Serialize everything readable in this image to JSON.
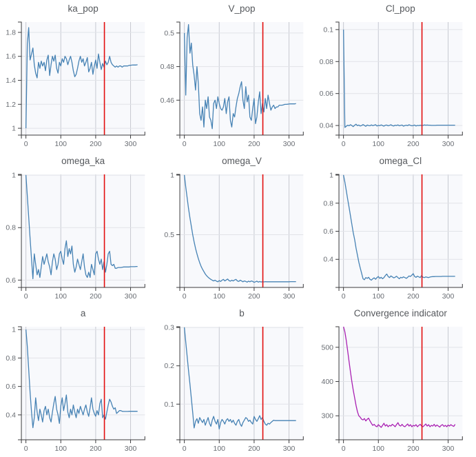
{
  "styles": {
    "page_bg": "#ffffff",
    "plot_bg": "#f8f9fc",
    "grid_vertical": "#c7c9d1",
    "grid_horizontal": "#e1e3e8",
    "axis_color": "#3b3b3d",
    "tick_label_color": "#696d73",
    "title_color": "#55585c",
    "series_blue": "#4682B4",
    "series_magenta": "#A920B2",
    "red_line": "#e30e0e"
  },
  "chart_data": {
    "type": "line",
    "layout": "3x3-grid",
    "xlabel": "",
    "x": [
      0,
      4,
      8,
      12,
      16,
      20,
      24,
      28,
      32,
      36,
      40,
      44,
      48,
      52,
      56,
      60,
      64,
      68,
      72,
      76,
      80,
      84,
      88,
      92,
      96,
      100,
      104,
      108,
      112,
      116,
      120,
      124,
      128,
      132,
      136,
      140,
      144,
      148,
      152,
      156,
      160,
      164,
      168,
      172,
      176,
      180,
      184,
      188,
      192,
      196,
      200,
      204,
      208,
      212,
      216,
      220,
      224,
      228,
      232,
      236,
      240,
      244,
      248,
      252,
      256,
      260,
      264,
      268,
      272,
      276,
      280,
      284,
      288,
      292,
      296,
      300,
      304,
      308,
      312,
      316,
      320
    ],
    "xlim": [
      -13,
      341
    ],
    "xticks": [
      0,
      100,
      200,
      300
    ],
    "xtick_labels": [
      "0",
      "100",
      "200",
      "300"
    ],
    "vline_x": 225,
    "panels": [
      {
        "title": "ka_pop",
        "color_key": "series_blue",
        "ylim": [
          0.943,
          1.886
        ],
        "yticks": [
          1,
          1.2,
          1.4,
          1.6,
          1.8
        ],
        "ytick_labels": [
          "1",
          "1.2",
          "1.4",
          "1.6",
          "1.8"
        ],
        "y": [
          1.0,
          1.7,
          1.84,
          1.57,
          1.62,
          1.67,
          1.53,
          1.46,
          1.42,
          1.55,
          1.5,
          1.56,
          1.52,
          1.55,
          1.48,
          1.57,
          1.61,
          1.44,
          1.53,
          1.6,
          1.56,
          1.61,
          1.5,
          1.46,
          1.55,
          1.52,
          1.58,
          1.55,
          1.6,
          1.58,
          1.53,
          1.57,
          1.6,
          1.55,
          1.48,
          1.43,
          1.45,
          1.5,
          1.56,
          1.6,
          1.55,
          1.58,
          1.52,
          1.55,
          1.59,
          1.47,
          1.5,
          1.55,
          1.45,
          1.52,
          1.57,
          1.5,
          1.62,
          1.55,
          1.49,
          1.54,
          1.51,
          1.56,
          1.53,
          1.55,
          1.6,
          1.55,
          1.53,
          1.52,
          1.51,
          1.52,
          1.51,
          1.52,
          1.52,
          1.51,
          1.52,
          1.52,
          1.52,
          1.52,
          1.525,
          1.525,
          1.527,
          1.528,
          1.528,
          1.528,
          1.53
        ]
      },
      {
        "title": "V_pop",
        "color_key": "series_blue",
        "ylim": [
          0.4392,
          0.5065
        ],
        "yticks": [
          0.46,
          0.48,
          0.5
        ],
        "ytick_labels": [
          "0.46",
          "0.48",
          "0.5"
        ],
        "y": [
          0.5,
          0.463,
          0.497,
          0.505,
          0.488,
          0.494,
          0.481,
          0.475,
          0.466,
          0.48,
          0.47,
          0.452,
          0.448,
          0.456,
          0.444,
          0.46,
          0.455,
          0.462,
          0.45,
          0.448,
          0.443,
          0.458,
          0.46,
          0.455,
          0.462,
          0.458,
          0.455,
          0.454,
          0.456,
          0.461,
          0.452,
          0.459,
          0.462,
          0.448,
          0.444,
          0.452,
          0.45,
          0.456,
          0.461,
          0.464,
          0.468,
          0.471,
          0.46,
          0.455,
          0.468,
          0.459,
          0.463,
          0.45,
          0.448,
          0.455,
          0.461,
          0.446,
          0.45,
          0.459,
          0.465,
          0.452,
          0.458,
          0.453,
          0.461,
          0.455,
          0.463,
          0.458,
          0.454,
          0.456,
          0.457,
          0.455,
          0.456,
          0.456,
          0.457,
          0.457,
          0.457,
          0.4572,
          0.4575,
          0.4575,
          0.4576,
          0.4577,
          0.4578,
          0.4578,
          0.4578,
          0.4578,
          0.458
        ]
      },
      {
        "title": "Cl_pop",
        "color_key": "series_blue",
        "ylim": [
          0.034,
          0.1047
        ],
        "yticks": [
          0.04,
          0.06,
          0.08,
          0.1
        ],
        "ytick_labels": [
          "0.04",
          "0.06",
          "0.08",
          "0.1"
        ],
        "y": [
          0.1,
          0.0388,
          0.0395,
          0.0402,
          0.0398,
          0.0405,
          0.04,
          0.0393,
          0.0402,
          0.0408,
          0.0399,
          0.0403,
          0.0397,
          0.04,
          0.0406,
          0.0401,
          0.0395,
          0.0403,
          0.04,
          0.0398,
          0.0404,
          0.0399,
          0.0402,
          0.0405,
          0.0397,
          0.0401,
          0.0399,
          0.0404,
          0.04,
          0.0396,
          0.0402,
          0.0403,
          0.0398,
          0.0401,
          0.0405,
          0.0399,
          0.0397,
          0.0402,
          0.04,
          0.0404,
          0.0398,
          0.0401,
          0.0403,
          0.0396,
          0.04,
          0.0402,
          0.0399,
          0.0405,
          0.0401,
          0.0398,
          0.04,
          0.0403,
          0.0397,
          0.0401,
          0.0399,
          0.0402,
          0.04,
          0.0401,
          0.0404,
          0.0402,
          0.0403,
          0.0402,
          0.0402,
          0.0401,
          0.0401,
          0.0401,
          0.0401,
          0.0402,
          0.0402,
          0.0402,
          0.0402,
          0.0402,
          0.0402,
          0.0402,
          0.0402,
          0.0402,
          0.0402,
          0.0402,
          0.0402,
          0.0402,
          0.0402
        ]
      },
      {
        "title": "omega_ka",
        "color_key": "series_blue",
        "ylim": [
          0.572,
          1.003
        ],
        "yticks": [
          0.6,
          0.8,
          1
        ],
        "ytick_labels": [
          "0.6",
          "0.8",
          "1"
        ],
        "y": [
          1.0,
          0.92,
          0.84,
          0.76,
          0.68,
          0.605,
          0.7,
          0.66,
          0.62,
          0.64,
          0.61,
          0.65,
          0.69,
          0.66,
          0.68,
          0.7,
          0.67,
          0.65,
          0.62,
          0.67,
          0.7,
          0.68,
          0.64,
          0.66,
          0.7,
          0.71,
          0.68,
          0.66,
          0.72,
          0.75,
          0.69,
          0.72,
          0.7,
          0.73,
          0.66,
          0.63,
          0.65,
          0.68,
          0.66,
          0.64,
          0.67,
          0.7,
          0.65,
          0.62,
          0.61,
          0.63,
          0.61,
          0.66,
          0.64,
          0.62,
          0.7,
          0.71,
          0.68,
          0.66,
          0.68,
          0.64,
          0.67,
          0.63,
          0.66,
          0.7,
          0.71,
          0.66,
          0.655,
          0.66,
          0.645,
          0.645,
          0.648,
          0.648,
          0.648,
          0.649,
          0.65,
          0.65,
          0.65,
          0.65,
          0.65,
          0.651,
          0.651,
          0.651,
          0.651,
          0.652,
          0.652
        ]
      },
      {
        "title": "omega_V",
        "color_key": "series_blue",
        "ylim": [
          0.0575,
          1.0057
        ],
        "yticks": [
          0.5,
          1
        ],
        "ytick_labels": [
          "0.5",
          "1"
        ],
        "y": [
          1.0,
          0.9,
          0.81,
          0.72,
          0.64,
          0.57,
          0.5,
          0.44,
          0.385,
          0.34,
          0.3,
          0.265,
          0.235,
          0.21,
          0.19,
          0.17,
          0.155,
          0.143,
          0.133,
          0.125,
          0.118,
          0.112,
          0.118,
          0.11,
          0.105,
          0.115,
          0.108,
          0.118,
          0.125,
          0.112,
          0.12,
          0.128,
          0.115,
          0.11,
          0.118,
          0.112,
          0.12,
          0.125,
          0.112,
          0.108,
          0.118,
          0.112,
          0.105,
          0.112,
          0.108,
          0.102,
          0.11,
          0.105,
          0.112,
          0.108,
          0.1,
          0.105,
          0.11,
          0.102,
          0.107,
          0.103,
          0.106,
          0.104,
          0.106,
          0.105,
          0.105,
          0.105,
          0.105,
          0.105,
          0.105,
          0.105,
          0.105,
          0.105,
          0.105,
          0.105,
          0.105,
          0.105,
          0.105,
          0.105,
          0.105,
          0.105,
          0.106,
          0.106,
          0.106,
          0.106,
          0.106
        ]
      },
      {
        "title": "omega_Cl",
        "color_key": "series_blue",
        "ylim": [
          0.2,
          1.005
        ],
        "yticks": [
          0.4,
          0.6,
          0.8,
          1
        ],
        "ytick_labels": [
          "0.4",
          "0.6",
          "0.8",
          "1"
        ],
        "y": [
          1.0,
          0.95,
          0.89,
          0.83,
          0.77,
          0.71,
          0.65,
          0.59,
          0.54,
          0.48,
          0.43,
          0.38,
          0.34,
          0.3,
          0.262,
          0.255,
          0.27,
          0.265,
          0.272,
          0.258,
          0.252,
          0.262,
          0.268,
          0.258,
          0.27,
          0.278,
          0.265,
          0.272,
          0.262,
          0.27,
          0.285,
          0.295,
          0.278,
          0.27,
          0.282,
          0.275,
          0.268,
          0.272,
          0.28,
          0.27,
          0.262,
          0.272,
          0.268,
          0.275,
          0.27,
          0.265,
          0.272,
          0.282,
          0.278,
          0.288,
          0.298,
          0.278,
          0.272,
          0.28,
          0.275,
          0.27,
          0.285,
          0.272,
          0.27,
          0.275,
          0.272,
          0.27,
          0.274,
          0.276,
          0.277,
          0.277,
          0.278,
          0.278,
          0.278,
          0.278,
          0.278,
          0.279,
          0.279,
          0.279,
          0.279,
          0.279,
          0.279,
          0.279,
          0.279,
          0.279,
          0.279
        ]
      },
      {
        "title": "a",
        "color_key": "series_blue",
        "ylim": [
          0.225,
          1.02
        ],
        "yticks": [
          0.4,
          0.6,
          0.8,
          1
        ],
        "ytick_labels": [
          "0.4",
          "0.6",
          "0.8",
          "1"
        ],
        "y": [
          1.0,
          0.88,
          0.72,
          0.56,
          0.42,
          0.31,
          0.38,
          0.52,
          0.42,
          0.36,
          0.44,
          0.4,
          0.35,
          0.43,
          0.46,
          0.4,
          0.44,
          0.38,
          0.35,
          0.42,
          0.48,
          0.53,
          0.44,
          0.4,
          0.34,
          0.46,
          0.52,
          0.43,
          0.48,
          0.54,
          0.42,
          0.38,
          0.44,
          0.4,
          0.47,
          0.42,
          0.38,
          0.44,
          0.41,
          0.46,
          0.43,
          0.4,
          0.44,
          0.47,
          0.42,
          0.39,
          0.45,
          0.52,
          0.44,
          0.41,
          0.39,
          0.43,
          0.4,
          0.48,
          0.51,
          0.38,
          0.4,
          0.37,
          0.42,
          0.47,
          0.51,
          0.49,
          0.46,
          0.44,
          0.45,
          0.41,
          0.42,
          0.43,
          0.43,
          0.425,
          0.424,
          0.424,
          0.424,
          0.424,
          0.425,
          0.425,
          0.425,
          0.425,
          0.425,
          0.425,
          0.425
        ]
      },
      {
        "title": "b",
        "color_key": "series_blue",
        "ylim": [
          0.007,
          0.302
        ],
        "yticks": [
          0.1,
          0.2,
          0.3
        ],
        "ytick_labels": [
          "0.1",
          "0.2",
          "0.3"
        ],
        "y": [
          0.3,
          0.262,
          0.225,
          0.188,
          0.152,
          0.115,
          0.078,
          0.038,
          0.055,
          0.062,
          0.05,
          0.065,
          0.058,
          0.052,
          0.06,
          0.045,
          0.055,
          0.065,
          0.05,
          0.042,
          0.058,
          0.068,
          0.055,
          0.048,
          0.06,
          0.035,
          0.052,
          0.06,
          0.055,
          0.048,
          0.058,
          0.062,
          0.055,
          0.06,
          0.052,
          0.058,
          0.05,
          0.045,
          0.055,
          0.06,
          0.048,
          0.042,
          0.052,
          0.058,
          0.065,
          0.062,
          0.055,
          0.058,
          0.052,
          0.048,
          0.068,
          0.06,
          0.055,
          0.062,
          0.07,
          0.06,
          0.065,
          0.055,
          0.048,
          0.045,
          0.05,
          0.048,
          0.052,
          0.055,
          0.058,
          0.057,
          0.057,
          0.057,
          0.057,
          0.057,
          0.057,
          0.057,
          0.057,
          0.057,
          0.057,
          0.057,
          0.057,
          0.057,
          0.057,
          0.057,
          0.057
        ]
      },
      {
        "title": "Convergence indicator",
        "color_key": "series_magenta",
        "ylim": [
          230,
          560
        ],
        "yticks": [
          300,
          400,
          500
        ],
        "ytick_labels": [
          "300",
          "400",
          "500"
        ],
        "y": [
          560,
          545,
          520,
          490,
          458,
          428,
          400,
          375,
          352,
          330,
          312,
          300,
          296,
          290,
          288,
          292,
          285,
          290,
          293,
          285,
          278,
          272,
          275,
          270,
          268,
          274,
          270,
          266,
          272,
          278,
          270,
          274,
          268,
          272,
          270,
          275,
          272,
          268,
          274,
          280,
          272,
          270,
          275,
          270,
          268,
          272,
          276,
          270,
          274,
          268,
          272,
          270,
          274,
          268,
          272,
          275,
          270,
          268,
          272,
          276,
          270,
          274,
          268,
          272,
          270,
          275,
          269,
          273,
          270,
          267,
          272,
          274,
          269,
          272,
          268,
          273,
          270,
          274,
          271,
          269,
          275
        ]
      }
    ]
  }
}
